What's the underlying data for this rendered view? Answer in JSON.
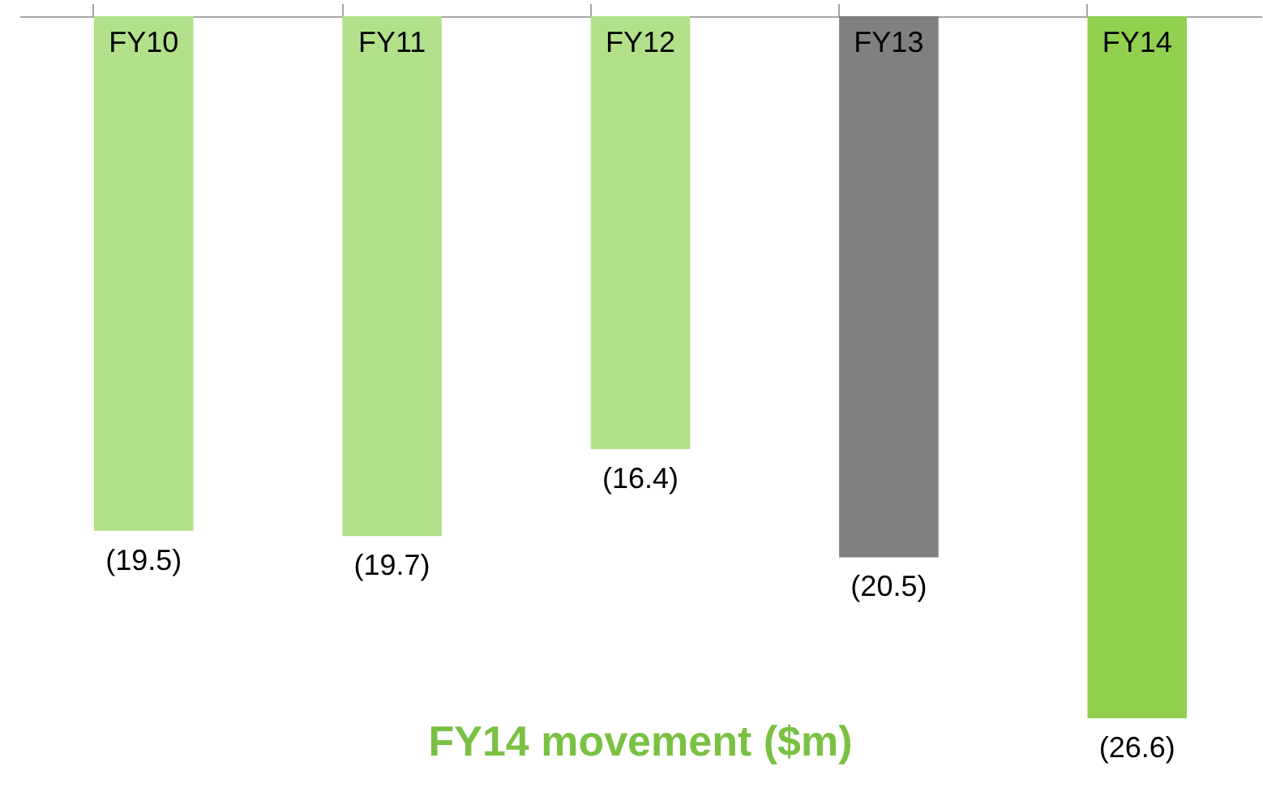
{
  "chart_data": {
    "type": "bar",
    "title": "FY14 movement ($m)",
    "categories": [
      "FY10",
      "FY11",
      "FY12",
      "FY13",
      "FY14"
    ],
    "values": [
      -19.5,
      -19.7,
      -16.4,
      -20.5,
      -26.6
    ],
    "colors": [
      "#b3e08a",
      "#b3e08a",
      "#b3e08a",
      "#808080",
      "#92d050"
    ],
    "value_labels": [
      "(19.5)",
      "(19.7)",
      "(16.4)",
      "(20.5)",
      "(26.6)"
    ]
  }
}
